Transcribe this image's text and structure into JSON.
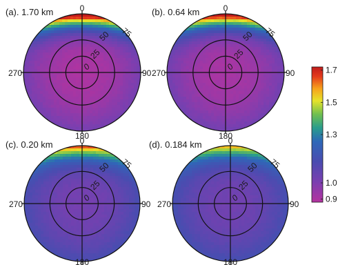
{
  "chart_data": {
    "type": "heatmap",
    "projection": "polar",
    "panels": [
      {
        "title": "(a). 1.70 km",
        "peak": 1.66,
        "center": 0.9,
        "band_spread": 0.22
      },
      {
        "title": "(b). 0.64 km",
        "peak": 1.64,
        "center": 0.91,
        "band_spread": 0.2
      },
      {
        "title": "(c). 0.20 km",
        "peak": 1.46,
        "center": 1.02,
        "band_spread": 0.3
      },
      {
        "title": "(d). 0.184 km",
        "peak": 1.38,
        "center": 1.03,
        "band_spread": 0.32
      }
    ],
    "azimuth_labels": [
      "0",
      "90",
      "180",
      "270"
    ],
    "ring_labels": [
      "0",
      "25",
      "50",
      "75"
    ],
    "ring_values": [
      25,
      50
    ],
    "radial_max": 90,
    "colorbar": {
      "ticks": [
        "1.7",
        "1.5",
        "1.3",
        "1.0",
        "0.9"
      ],
      "tick_values": [
        1.7,
        1.5,
        1.3,
        1.0,
        0.9
      ],
      "min": 0.88,
      "max": 1.72,
      "colors": [
        "#b4339f",
        "#7a3fb0",
        "#4a4cb0",
        "#2e68b8",
        "#2a9d8c",
        "#70c050",
        "#e6e32a",
        "#f7a21c",
        "#e33a1c",
        "#c11c1c"
      ],
      "color_stops": [
        0.0,
        0.15,
        0.3,
        0.45,
        0.55,
        0.65,
        0.75,
        0.84,
        0.93,
        1.0
      ]
    }
  }
}
